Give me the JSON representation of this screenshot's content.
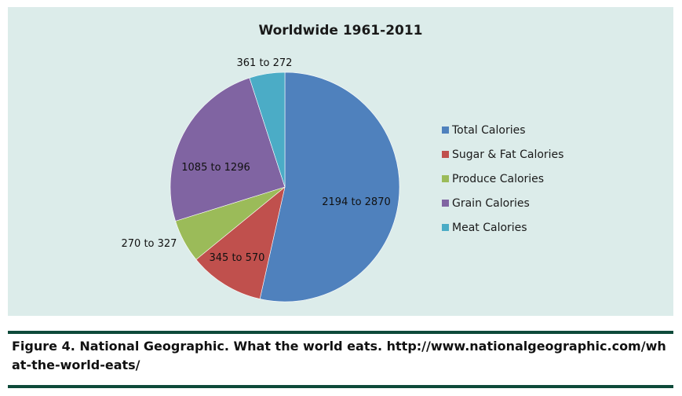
{
  "chart_data": {
    "type": "pie",
    "title": "Worldwide 1961-2011",
    "slices": [
      {
        "label": "Total Calories",
        "range": [
          2194,
          2870
        ],
        "data_label": "2194 to 2870",
        "share_percent": 53.5,
        "color": "#4f81bd"
      },
      {
        "label": "Sugar & Fat Calories",
        "range": [
          345,
          570
        ],
        "data_label": "345 to 570",
        "share_percent": 10.6,
        "color": "#c0504d"
      },
      {
        "label": "Produce Calories",
        "range": [
          270,
          327
        ],
        "data_label": "270 to 327",
        "share_percent": 6.1,
        "color": "#9bbb59"
      },
      {
        "label": "Grain Calories",
        "range": [
          1085,
          1296
        ],
        "data_label": "1085 to 1296",
        "share_percent": 24.8,
        "color": "#8064a2"
      },
      {
        "label": "Meat Calories",
        "range": [
          361,
          272
        ],
        "data_label": "361 to 272",
        "share_percent": 5.0,
        "color": "#4bacc6"
      }
    ],
    "legend_position": "right"
  },
  "caption": "Figure 4. National Geographic. What the world eats. http://www.nationalgeographic.com/what-the-world-eats/",
  "colors": {
    "panel_background": "#dcecea",
    "rule": "#0e4a3a"
  }
}
